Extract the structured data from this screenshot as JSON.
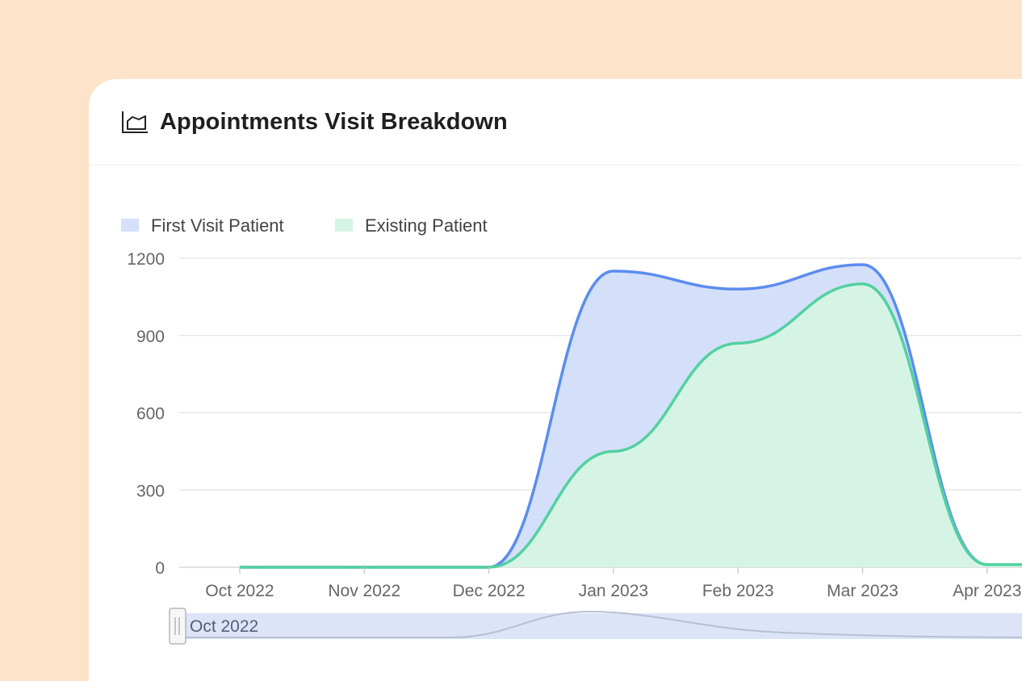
{
  "card": {
    "title": "Appointments Visit Breakdown",
    "icon": "area-chart-icon"
  },
  "colors": {
    "background": "#fde3c9",
    "first_visit_line": "#5b8def",
    "first_visit_fill": "#d4e0fa",
    "existing_line": "#52d1a0",
    "existing_fill": "#d6f4e6",
    "slider_fill": "#dde4f7"
  },
  "slider": {
    "start_label": "Oct 2022"
  },
  "chart_data": {
    "type": "area",
    "x": [
      "Oct 2022",
      "Nov 2022",
      "Dec 2022",
      "Jan 2023",
      "Feb 2023",
      "Mar 2023",
      "Apr 2023"
    ],
    "series": [
      {
        "name": "First Visit Patient",
        "values": [
          0,
          0,
          0,
          1150,
          1080,
          1175,
          10
        ]
      },
      {
        "name": "Existing Patient",
        "values": [
          0,
          0,
          0,
          450,
          870,
          1100,
          10
        ]
      }
    ],
    "ylim": [
      0,
      1200
    ],
    "yticks": [
      0,
      300,
      600,
      900,
      1200
    ],
    "grid": true,
    "legend": "top-left"
  }
}
